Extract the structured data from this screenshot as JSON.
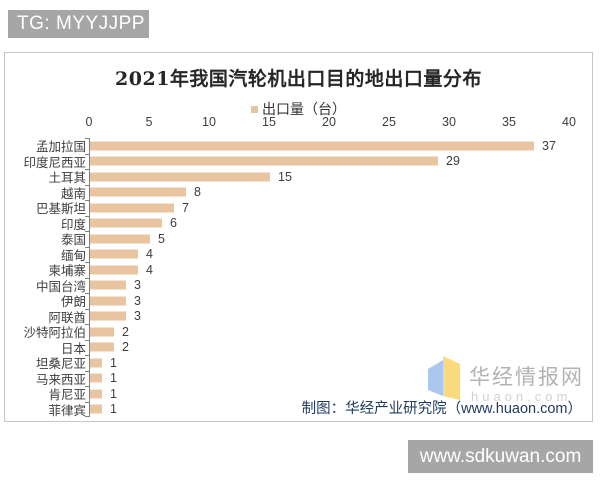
{
  "overlay": {
    "top_badge": "TG: MYYJJPP",
    "bottom_badge": "www.sdkuwan.com"
  },
  "chart": {
    "title": "2021年我国汽轮机出口目的地出口量分布",
    "legend_label": "出口量（台）",
    "attribution": "制图：华经产业研究院（www.huaon.com）",
    "watermark_name": "华经情报网",
    "watermark_url": "huaon.com",
    "bar_color": "#e9c4a0"
  },
  "chart_data": {
    "type": "bar",
    "orientation": "horizontal",
    "title": "2021年我国汽轮机出口目的地出口量分布",
    "legend": [
      "出口量（台）"
    ],
    "categories": [
      "孟加拉国",
      "印度尼西亚",
      "土耳其",
      "越南",
      "巴基斯坦",
      "印度",
      "泰国",
      "缅甸",
      "柬埔寨",
      "中国台湾",
      "伊朗",
      "阿联酋",
      "沙特阿拉伯",
      "日本",
      "坦桑尼亚",
      "马来西亚",
      "肯尼亚",
      "菲律宾"
    ],
    "values": [
      37,
      29,
      15,
      8,
      7,
      6,
      5,
      4,
      4,
      3,
      3,
      3,
      2,
      2,
      1,
      1,
      1,
      1
    ],
    "xlabel": "",
    "ylabel": "",
    "xlim": [
      0,
      40
    ],
    "xticks": [
      0,
      5,
      10,
      15,
      20,
      25,
      30,
      35,
      40
    ],
    "grid": false,
    "legend_position": "top-center",
    "value_labels": true
  }
}
